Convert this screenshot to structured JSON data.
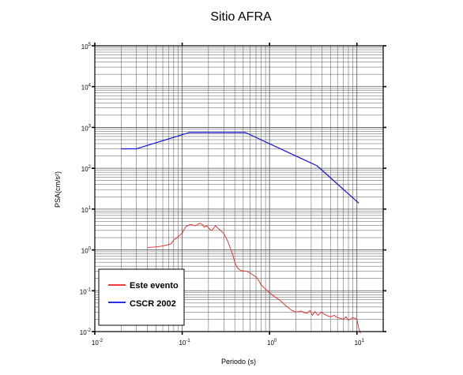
{
  "chart_data": {
    "type": "line",
    "title": "Sitio AFRA",
    "xlabel": "Periodo (s)",
    "ylabel": "PSA(cm/s²)",
    "x_scale": "log",
    "y_scale": "log",
    "xlim": [
      0.01,
      20
    ],
    "ylim": [
      0.01,
      100000
    ],
    "grid": true,
    "legend_position": "bottom-left",
    "x_ticks": [
      {
        "base": "10",
        "exp": "-2",
        "value": 0.01
      },
      {
        "base": "10",
        "exp": "-1",
        "value": 0.1
      },
      {
        "base": "10",
        "exp": "0",
        "value": 1
      },
      {
        "base": "10",
        "exp": "1",
        "value": 10
      }
    ],
    "y_ticks": [
      {
        "base": "10",
        "exp": "-2",
        "value": 0.01
      },
      {
        "base": "10",
        "exp": "-1",
        "value": 0.1
      },
      {
        "base": "10",
        "exp": "0",
        "value": 1
      },
      {
        "base": "10",
        "exp": "1",
        "value": 10
      },
      {
        "base": "10",
        "exp": "2",
        "value": 100
      },
      {
        "base": "10",
        "exp": "3",
        "value": 1000
      },
      {
        "base": "10",
        "exp": "4",
        "value": 10000
      },
      {
        "base": "10",
        "exp": "5",
        "value": 100000
      }
    ],
    "series": [
      {
        "name": "Este evento",
        "color": "#ee2222",
        "points": [
          [
            0.04,
            1.15
          ],
          [
            0.05,
            1.18
          ],
          [
            0.06,
            1.25
          ],
          [
            0.07,
            1.35
          ],
          [
            0.075,
            1.42
          ],
          [
            0.08,
            1.75
          ],
          [
            0.09,
            2.1
          ],
          [
            0.1,
            2.6
          ],
          [
            0.11,
            3.7
          ],
          [
            0.12,
            4.1
          ],
          [
            0.13,
            4.15
          ],
          [
            0.14,
            3.9
          ],
          [
            0.15,
            4.2
          ],
          [
            0.16,
            4.5
          ],
          [
            0.17,
            4.2
          ],
          [
            0.18,
            3.6
          ],
          [
            0.19,
            3.9
          ],
          [
            0.2,
            3.5
          ],
          [
            0.21,
            3.1
          ],
          [
            0.22,
            3.0
          ],
          [
            0.24,
            3.9
          ],
          [
            0.26,
            3.3
          ],
          [
            0.28,
            2.9
          ],
          [
            0.3,
            2.5
          ],
          [
            0.33,
            1.7
          ],
          [
            0.36,
            1.05
          ],
          [
            0.38,
            0.75
          ],
          [
            0.4,
            0.5
          ],
          [
            0.43,
            0.36
          ],
          [
            0.47,
            0.31
          ],
          [
            0.55,
            0.3
          ],
          [
            0.6,
            0.27
          ],
          [
            0.7,
            0.22
          ],
          [
            0.75,
            0.18
          ],
          [
            0.8,
            0.14
          ],
          [
            0.9,
            0.11
          ],
          [
            1.0,
            0.09
          ],
          [
            1.1,
            0.075
          ],
          [
            1.3,
            0.06
          ],
          [
            1.5,
            0.045
          ],
          [
            1.6,
            0.04
          ],
          [
            1.8,
            0.033
          ],
          [
            2.0,
            0.03
          ],
          [
            2.3,
            0.032
          ],
          [
            2.5,
            0.029
          ],
          [
            2.7,
            0.028
          ],
          [
            2.9,
            0.033
          ],
          [
            3.1,
            0.025
          ],
          [
            3.3,
            0.031
          ],
          [
            3.6,
            0.025
          ],
          [
            3.9,
            0.03
          ],
          [
            4.3,
            0.026
          ],
          [
            4.7,
            0.024
          ],
          [
            5.0,
            0.023
          ],
          [
            5.5,
            0.025
          ],
          [
            6.0,
            0.022
          ],
          [
            6.5,
            0.021
          ],
          [
            7.0,
            0.02
          ],
          [
            7.5,
            0.023
          ],
          [
            8.0,
            0.019
          ],
          [
            9.0,
            0.022
          ],
          [
            10.0,
            0.02
          ],
          [
            10.5,
            0.012
          ],
          [
            11.0,
            0.009
          ]
        ]
      },
      {
        "name": "CSCR 2002",
        "color": "#1111dd",
        "points": [
          [
            0.02,
            300
          ],
          [
            0.03,
            300
          ],
          [
            0.12,
            750
          ],
          [
            0.53,
            750
          ],
          [
            3.5,
            115
          ],
          [
            10.5,
            14
          ]
        ]
      }
    ]
  }
}
